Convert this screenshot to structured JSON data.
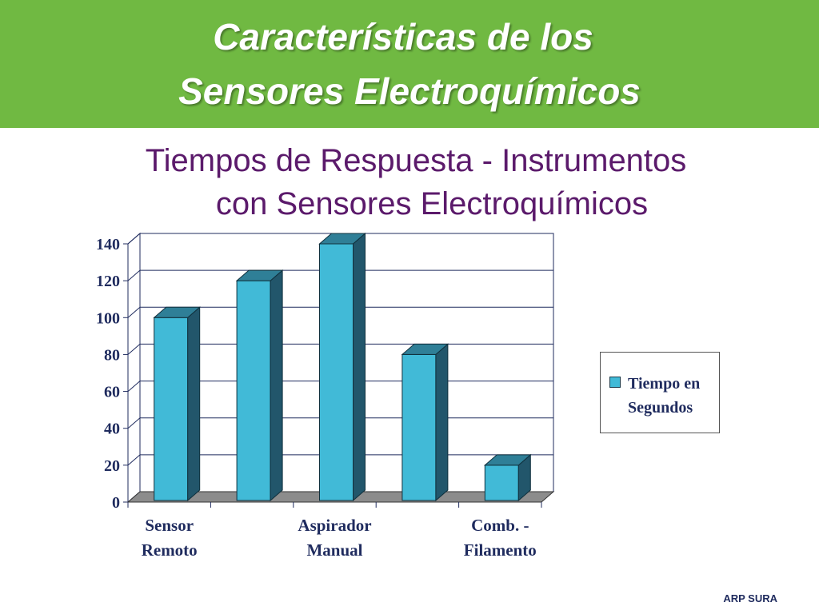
{
  "header": {
    "title_line1": "Características de los",
    "title_line2": "Sensores Electroquímicos"
  },
  "chart_data": {
    "type": "bar",
    "title_line1": "Tiempos de Respuesta - Instrumentos",
    "title_line2": "con Sensores Electroquímicos",
    "categories": [
      "Sensor Remoto",
      "",
      "Aspirador Manual",
      "",
      "Comb. - Filamento"
    ],
    "category_labels_shown": [
      [
        "Sensor",
        "Remoto"
      ],
      [
        "Aspirador",
        "Manual"
      ],
      [
        "Comb. -",
        "Filamento"
      ]
    ],
    "series": [
      {
        "name": "Tiempo en Segundos",
        "values": [
          100,
          120,
          140,
          80,
          20
        ],
        "color": "#41bad7"
      }
    ],
    "ylim": [
      0,
      140
    ],
    "yticks": [
      "0",
      "20",
      "40",
      "60",
      "80",
      "100",
      "120",
      "140"
    ],
    "grid": true,
    "legend_position": "right",
    "legend_lines": [
      "Tiempo en",
      "Segundos"
    ]
  },
  "colors": {
    "banner": "#70b942",
    "subtitle": "#5b1a6b",
    "bar_front": "#41bad7",
    "bar_side": "#22566b",
    "bar_top": "#2f7f97",
    "axis_text": "#1f2b5e"
  },
  "footer": {
    "text": "ARP SURA"
  }
}
